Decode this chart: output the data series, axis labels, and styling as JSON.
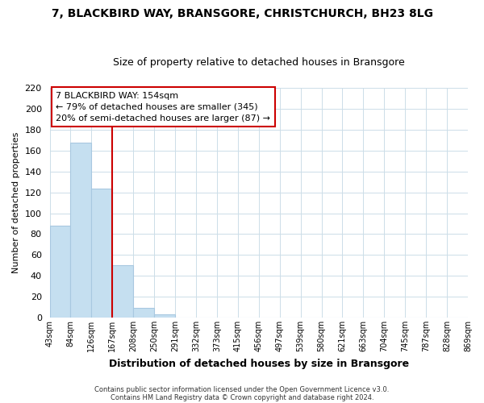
{
  "title": "7, BLACKBIRD WAY, BRANSGORE, CHRISTCHURCH, BH23 8LG",
  "subtitle": "Size of property relative to detached houses in Bransgore",
  "bar_values": [
    88,
    168,
    124,
    50,
    9,
    3,
    0,
    0,
    0,
    0,
    0,
    0,
    0,
    0,
    0,
    0,
    0,
    0,
    0,
    0
  ],
  "x_labels": [
    "43sqm",
    "84sqm",
    "126sqm",
    "167sqm",
    "208sqm",
    "250sqm",
    "291sqm",
    "332sqm",
    "373sqm",
    "415sqm",
    "456sqm",
    "497sqm",
    "539sqm",
    "580sqm",
    "621sqm",
    "663sqm",
    "704sqm",
    "745sqm",
    "787sqm",
    "828sqm",
    "869sqm"
  ],
  "bar_color": "#c5dff0",
  "bar_edge_color": "#a8c8e0",
  "ylabel": "Number of detached properties",
  "xlabel": "Distribution of detached houses by size in Bransgore",
  "ylim": [
    0,
    220
  ],
  "yticks": [
    0,
    20,
    40,
    60,
    80,
    100,
    120,
    140,
    160,
    180,
    200,
    220
  ],
  "vline_x": 3,
  "vline_color": "#cc0000",
  "annotation_title": "7 BLACKBIRD WAY: 154sqm",
  "annotation_line1": "← 79% of detached houses are smaller (345)",
  "annotation_line2": "20% of semi-detached houses are larger (87) →",
  "footer1": "Contains HM Land Registry data © Crown copyright and database right 2024.",
  "footer2": "Contains public sector information licensed under the Open Government Licence v3.0.",
  "grid_color": "#ccdde8",
  "background_color": "#ffffff",
  "ann_box_color": "#cc0000",
  "title_fontsize": 10,
  "subtitle_fontsize": 9,
  "ylabel_fontsize": 8,
  "xlabel_fontsize": 9,
  "ytick_fontsize": 8,
  "xtick_fontsize": 7,
  "ann_fontsize": 8,
  "footer_fontsize": 6
}
